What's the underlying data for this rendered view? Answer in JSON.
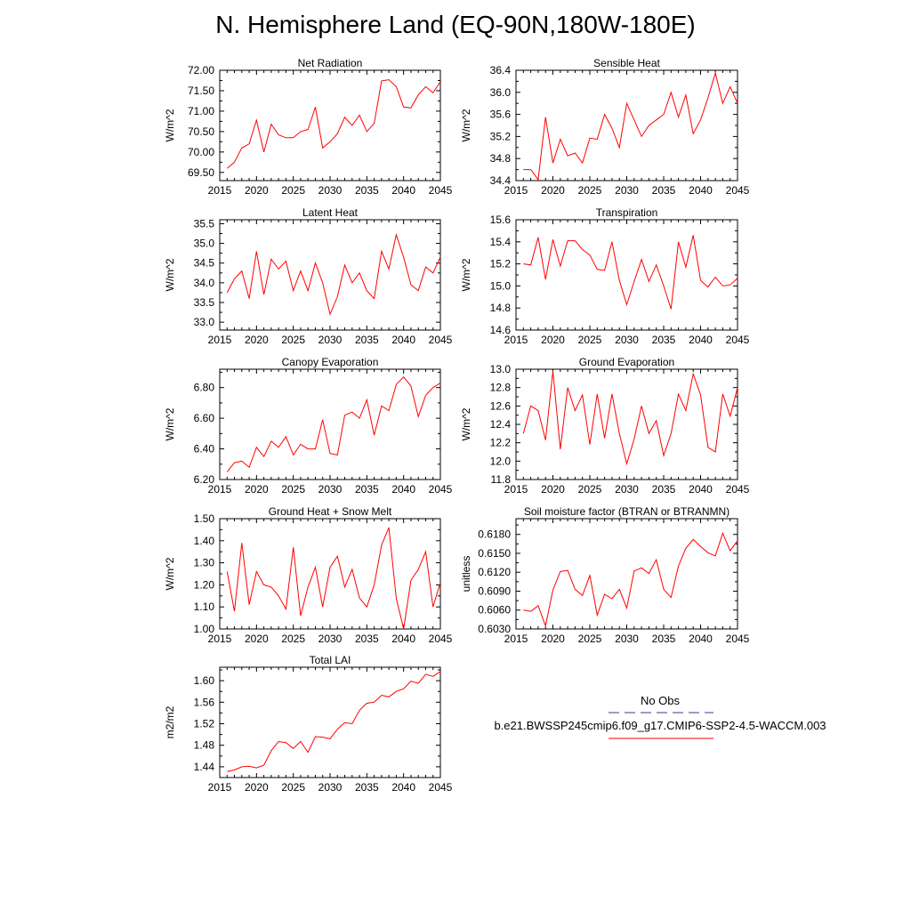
{
  "title": "N. Hemisphere Land (EQ-90N,180W-180E)",
  "legend": {
    "obs_label": "No Obs",
    "obs_color": "#3a3aa0",
    "model_label": "b.e21.BWSSP245cmip6.f09_g17.CMIP6-SSP2-4.5-WACCM.003",
    "model_color": "#ff0000"
  },
  "chart_data": [
    {
      "type": "line",
      "title": "Net Radiation",
      "ylabel": "W/m^2",
      "xlim": [
        2015,
        2045
      ],
      "ylim": [
        69.3,
        72.0
      ],
      "xticks": [
        2015,
        2020,
        2025,
        2030,
        2035,
        2040,
        2045
      ],
      "yticks": [
        69.5,
        70.0,
        70.5,
        71.0,
        71.5,
        72.0
      ],
      "ydec": 2,
      "x": [
        2016,
        2017,
        2018,
        2019,
        2020,
        2021,
        2022,
        2023,
        2024,
        2025,
        2026,
        2027,
        2028,
        2029,
        2030,
        2031,
        2032,
        2033,
        2034,
        2035,
        2036,
        2037,
        2038,
        2039,
        2040,
        2041,
        2042,
        2043,
        2044,
        2045
      ],
      "series": [
        {
          "values": [
            69.6,
            69.75,
            70.1,
            70.2,
            70.78,
            70.0,
            70.68,
            70.42,
            70.35,
            70.35,
            70.5,
            70.55,
            71.1,
            70.1,
            70.25,
            70.45,
            70.85,
            70.65,
            70.9,
            70.5,
            70.7,
            71.74,
            71.77,
            71.6,
            71.1,
            71.08,
            71.4,
            71.6,
            71.45,
            71.72
          ]
        }
      ]
    },
    {
      "type": "line",
      "title": "Sensible Heat",
      "ylabel": "W/m^2",
      "xlim": [
        2015,
        2045
      ],
      "ylim": [
        34.4,
        36.4
      ],
      "xticks": [
        2015,
        2020,
        2025,
        2030,
        2035,
        2040,
        2045
      ],
      "yticks": [
        34.4,
        34.8,
        35.2,
        35.6,
        36.0,
        36.4
      ],
      "ydec": 1,
      "x": [
        2016,
        2017,
        2018,
        2019,
        2020,
        2021,
        2022,
        2023,
        2024,
        2025,
        2026,
        2027,
        2028,
        2029,
        2030,
        2031,
        2032,
        2033,
        2034,
        2035,
        2036,
        2037,
        2038,
        2039,
        2040,
        2041,
        2042,
        2043,
        2044,
        2045
      ],
      "series": [
        {
          "values": [
            34.6,
            34.6,
            34.42,
            35.55,
            34.72,
            35.15,
            34.85,
            34.9,
            34.72,
            35.17,
            35.15,
            35.6,
            35.35,
            35.0,
            35.8,
            35.5,
            35.2,
            35.4,
            35.5,
            35.6,
            36.0,
            35.55,
            35.95,
            35.25,
            35.5,
            35.9,
            36.35,
            35.8,
            36.1,
            35.8
          ]
        }
      ]
    },
    {
      "type": "line",
      "title": "Latent Heat",
      "ylabel": "W/m^2",
      "xlim": [
        2015,
        2045
      ],
      "ylim": [
        32.8,
        35.6
      ],
      "xticks": [
        2015,
        2020,
        2025,
        2030,
        2035,
        2040,
        2045
      ],
      "yticks": [
        33.0,
        33.5,
        34.0,
        34.5,
        35.0,
        35.5
      ],
      "ydec": 1,
      "x": [
        2016,
        2017,
        2018,
        2019,
        2020,
        2021,
        2022,
        2023,
        2024,
        2025,
        2026,
        2027,
        2028,
        2029,
        2030,
        2031,
        2032,
        2033,
        2034,
        2035,
        2036,
        2037,
        2038,
        2039,
        2040,
        2041,
        2042,
        2043,
        2044,
        2045
      ],
      "series": [
        {
          "values": [
            33.75,
            34.1,
            34.3,
            33.6,
            34.8,
            33.7,
            34.6,
            34.35,
            34.55,
            33.8,
            34.3,
            33.8,
            34.5,
            34.0,
            33.2,
            33.65,
            34.45,
            34.0,
            34.25,
            33.8,
            33.6,
            34.8,
            34.35,
            35.22,
            34.65,
            33.95,
            33.8,
            34.4,
            34.25,
            34.65
          ]
        }
      ]
    },
    {
      "type": "line",
      "title": "Transpiration",
      "ylabel": "W/m^2",
      "xlim": [
        2015,
        2045
      ],
      "ylim": [
        14.6,
        15.6
      ],
      "xticks": [
        2015,
        2020,
        2025,
        2030,
        2035,
        2040,
        2045
      ],
      "yticks": [
        14.6,
        14.8,
        15.0,
        15.2,
        15.4,
        15.6
      ],
      "ydec": 1,
      "x": [
        2016,
        2017,
        2018,
        2019,
        2020,
        2021,
        2022,
        2023,
        2024,
        2025,
        2026,
        2027,
        2028,
        2029,
        2030,
        2031,
        2032,
        2033,
        2034,
        2035,
        2036,
        2037,
        2038,
        2039,
        2040,
        2041,
        2042,
        2043,
        2044,
        2045
      ],
      "series": [
        {
          "values": [
            15.2,
            15.19,
            15.44,
            15.06,
            15.42,
            15.18,
            15.41,
            15.41,
            15.33,
            15.28,
            15.15,
            15.14,
            15.4,
            15.05,
            14.83,
            15.04,
            15.24,
            15.04,
            15.19,
            15.0,
            14.79,
            15.4,
            15.17,
            15.46,
            15.05,
            14.99,
            15.08,
            15.0,
            15.01,
            15.07
          ]
        }
      ]
    },
    {
      "type": "line",
      "title": "Canopy Evaporation",
      "ylabel": "W/m^2",
      "xlim": [
        2015,
        2045
      ],
      "ylim": [
        6.2,
        6.92
      ],
      "xticks": [
        2015,
        2020,
        2025,
        2030,
        2035,
        2040,
        2045
      ],
      "yticks": [
        6.2,
        6.4,
        6.6,
        6.8
      ],
      "ydec": 2,
      "x": [
        2016,
        2017,
        2018,
        2019,
        2020,
        2021,
        2022,
        2023,
        2024,
        2025,
        2026,
        2027,
        2028,
        2029,
        2030,
        2031,
        2032,
        2033,
        2034,
        2035,
        2036,
        2037,
        2038,
        2039,
        2040,
        2041,
        2042,
        2043,
        2044,
        2045
      ],
      "series": [
        {
          "values": [
            6.25,
            6.31,
            6.32,
            6.28,
            6.41,
            6.35,
            6.45,
            6.41,
            6.48,
            6.36,
            6.43,
            6.4,
            6.4,
            6.59,
            6.37,
            6.36,
            6.62,
            6.64,
            6.6,
            6.72,
            6.49,
            6.68,
            6.65,
            6.82,
            6.87,
            6.81,
            6.61,
            6.75,
            6.8,
            6.83
          ]
        }
      ]
    },
    {
      "type": "line",
      "title": "Ground Evaporation",
      "ylabel": "W/m^2",
      "xlim": [
        2015,
        2045
      ],
      "ylim": [
        11.8,
        13.0
      ],
      "xticks": [
        2015,
        2020,
        2025,
        2030,
        2035,
        2040,
        2045
      ],
      "yticks": [
        11.8,
        12.0,
        12.2,
        12.4,
        12.6,
        12.8,
        13.0
      ],
      "ydec": 1,
      "x": [
        2016,
        2017,
        2018,
        2019,
        2020,
        2021,
        2022,
        2023,
        2024,
        2025,
        2026,
        2027,
        2028,
        2029,
        2030,
        2031,
        2032,
        2033,
        2034,
        2035,
        2036,
        2037,
        2038,
        2039,
        2040,
        2041,
        2042,
        2043,
        2044,
        2045
      ],
      "series": [
        {
          "values": [
            12.3,
            12.6,
            12.55,
            12.23,
            12.98,
            12.13,
            12.8,
            12.55,
            12.72,
            12.18,
            12.73,
            12.25,
            12.73,
            12.3,
            11.97,
            12.24,
            12.6,
            12.3,
            12.44,
            12.06,
            12.3,
            12.73,
            12.55,
            12.95,
            12.72,
            12.15,
            12.1,
            12.73,
            12.49,
            12.8
          ]
        }
      ]
    },
    {
      "type": "line",
      "title": "Ground Heat + Snow Melt",
      "ylabel": "W/m^2",
      "xlim": [
        2015,
        2045
      ],
      "ylim": [
        1.0,
        1.5
      ],
      "xticks": [
        2015,
        2020,
        2025,
        2030,
        2035,
        2040,
        2045
      ],
      "yticks": [
        1.0,
        1.1,
        1.2,
        1.3,
        1.4,
        1.5
      ],
      "ydec": 2,
      "x": [
        2016,
        2017,
        2018,
        2019,
        2020,
        2021,
        2022,
        2023,
        2024,
        2025,
        2026,
        2027,
        2028,
        2029,
        2030,
        2031,
        2032,
        2033,
        2034,
        2035,
        2036,
        2037,
        2038,
        2039,
        2040,
        2041,
        2042,
        2043,
        2044,
        2045
      ],
      "series": [
        {
          "values": [
            1.26,
            1.08,
            1.39,
            1.11,
            1.26,
            1.2,
            1.19,
            1.15,
            1.09,
            1.37,
            1.06,
            1.19,
            1.28,
            1.1,
            1.28,
            1.33,
            1.19,
            1.27,
            1.14,
            1.1,
            1.2,
            1.38,
            1.46,
            1.14,
            1.0,
            1.22,
            1.27,
            1.35,
            1.1,
            1.21
          ]
        }
      ]
    },
    {
      "type": "line",
      "title": "Soil moisture factor (BTRAN or BTRANMN)",
      "ylabel": "unitless",
      "xlim": [
        2015,
        2045
      ],
      "ylim": [
        0.603,
        0.6205
      ],
      "xticks": [
        2015,
        2020,
        2025,
        2030,
        2035,
        2040,
        2045
      ],
      "yticks": [
        0.603,
        0.606,
        0.609,
        0.612,
        0.615,
        0.618
      ],
      "ydec": 4,
      "x": [
        2016,
        2017,
        2018,
        2019,
        2020,
        2021,
        2022,
        2023,
        2024,
        2025,
        2026,
        2027,
        2028,
        2029,
        2030,
        2031,
        2032,
        2033,
        2034,
        2035,
        2036,
        2037,
        2038,
        2039,
        2040,
        2041,
        2042,
        2043,
        2044,
        2045
      ],
      "series": [
        {
          "values": [
            0.606,
            0.6058,
            0.6067,
            0.6035,
            0.6092,
            0.6121,
            0.6123,
            0.6093,
            0.6083,
            0.6115,
            0.6052,
            0.6085,
            0.6078,
            0.6093,
            0.6063,
            0.6122,
            0.6127,
            0.6118,
            0.614,
            0.6093,
            0.608,
            0.613,
            0.6158,
            0.6172,
            0.6161,
            0.6151,
            0.6146,
            0.6182,
            0.6154,
            0.617
          ]
        }
      ]
    },
    {
      "type": "line",
      "title": "Total LAI",
      "ylabel": "m2/m2",
      "xlim": [
        2015,
        2045
      ],
      "ylim": [
        1.42,
        1.625
      ],
      "xticks": [
        2015,
        2020,
        2025,
        2030,
        2035,
        2040,
        2045
      ],
      "yticks": [
        1.44,
        1.48,
        1.52,
        1.56,
        1.6
      ],
      "ydec": 2,
      "x": [
        2016,
        2017,
        2018,
        2019,
        2020,
        2021,
        2022,
        2023,
        2024,
        2025,
        2026,
        2027,
        2028,
        2029,
        2030,
        2031,
        2032,
        2033,
        2034,
        2035,
        2036,
        2037,
        2038,
        2039,
        2040,
        2041,
        2042,
        2043,
        2044,
        2045
      ],
      "series": [
        {
          "values": [
            1.431,
            1.434,
            1.44,
            1.441,
            1.438,
            1.443,
            1.47,
            1.487,
            1.485,
            1.474,
            1.487,
            1.467,
            1.496,
            1.495,
            1.492,
            1.51,
            1.522,
            1.52,
            1.545,
            1.558,
            1.56,
            1.573,
            1.57,
            1.58,
            1.585,
            1.599,
            1.595,
            1.612,
            1.608,
            1.617
          ]
        }
      ]
    }
  ]
}
